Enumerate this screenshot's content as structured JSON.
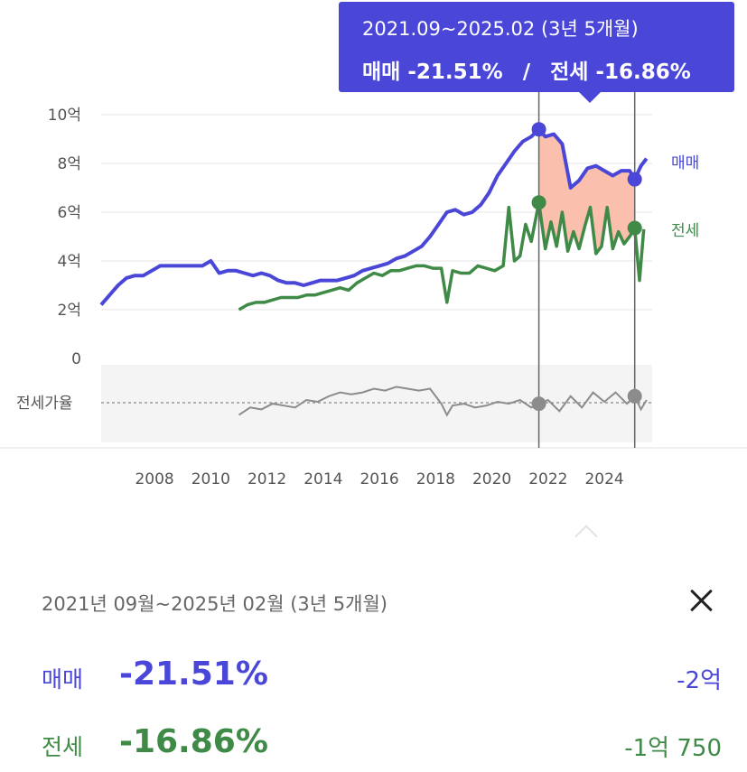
{
  "tooltip": {
    "period": "2021.09~2025.02 (3년 5개월)",
    "sale_label": "매매",
    "sale_change": "-21.51%",
    "separator": "/",
    "jeonse_label": "전세",
    "jeonse_change": "-16.86%"
  },
  "panel": {
    "period": "2021년 09월~2025년 02월 (3년 5개월)",
    "sale_label": "매매",
    "sale_change": "-21.51%",
    "sale_amount": "-2억",
    "jeonse_label": "전세",
    "jeonse_change": "-16.86%",
    "jeonse_amount": "-1억 750"
  },
  "colors": {
    "sale": "#4a47d8",
    "jeonse": "#3f8a47",
    "ratio": "#8c8c8c",
    "range_fill": "#fbbfae",
    "tooltip_bg": "#4a47d8"
  },
  "icons": {
    "close": "close-icon",
    "caret": "caret-up-icon"
  },
  "chart_data": {
    "type": "line",
    "y_tick_labels": [
      "0",
      "2억",
      "4억",
      "6억",
      "8억",
      "10억"
    ],
    "y_tick_values": [
      0,
      2,
      4,
      6,
      8,
      10
    ],
    "ylim": [
      0,
      10
    ],
    "xlim": [
      2006.1,
      2025.7
    ],
    "x_ticks": [
      "2008",
      "2010",
      "2012",
      "2014",
      "2016",
      "2018",
      "2020",
      "2022",
      "2024"
    ],
    "selection": {
      "start": 2021.67,
      "end": 2025.08,
      "start_sale": 9.4,
      "end_sale": 7.35,
      "start_jeonse": 6.4,
      "end_jeonse": 5.35,
      "start_ratio": 66,
      "end_ratio": 70
    },
    "series": [
      {
        "name": "매매",
        "x": [
          2006.1,
          2006.4,
          2006.7,
          2007.0,
          2007.3,
          2007.6,
          2007.9,
          2008.2,
          2008.5,
          2008.8,
          2009.1,
          2009.4,
          2009.7,
          2010.0,
          2010.3,
          2010.6,
          2010.9,
          2011.2,
          2011.5,
          2011.8,
          2012.1,
          2012.4,
          2012.7,
          2013.0,
          2013.3,
          2013.6,
          2013.9,
          2014.2,
          2014.5,
          2014.8,
          2015.1,
          2015.4,
          2015.7,
          2016.0,
          2016.3,
          2016.6,
          2016.9,
          2017.2,
          2017.5,
          2017.8,
          2018.1,
          2018.4,
          2018.7,
          2019.0,
          2019.3,
          2019.6,
          2019.9,
          2020.2,
          2020.5,
          2020.8,
          2021.1,
          2021.4,
          2021.67,
          2021.9,
          2022.2,
          2022.5,
          2022.8,
          2023.1,
          2023.4,
          2023.7,
          2024.0,
          2024.3,
          2024.6,
          2024.9,
          2025.08,
          2025.3,
          2025.5
        ],
        "values": [
          2.2,
          2.6,
          3.0,
          3.3,
          3.4,
          3.4,
          3.6,
          3.8,
          3.8,
          3.8,
          3.8,
          3.8,
          3.8,
          4.0,
          3.5,
          3.6,
          3.6,
          3.5,
          3.4,
          3.5,
          3.4,
          3.2,
          3.1,
          3.1,
          3.0,
          3.1,
          3.2,
          3.2,
          3.2,
          3.3,
          3.4,
          3.6,
          3.7,
          3.8,
          3.9,
          4.1,
          4.2,
          4.4,
          4.6,
          5.0,
          5.5,
          6.0,
          6.1,
          5.9,
          6.0,
          6.3,
          6.8,
          7.5,
          8.0,
          8.5,
          8.9,
          9.1,
          9.4,
          9.1,
          9.2,
          8.8,
          7.0,
          7.3,
          7.8,
          7.9,
          7.7,
          7.5,
          7.7,
          7.7,
          7.35,
          7.9,
          8.2
        ]
      },
      {
        "name": "전세",
        "x": [
          2011.0,
          2011.3,
          2011.6,
          2011.9,
          2012.2,
          2012.5,
          2012.8,
          2013.1,
          2013.4,
          2013.7,
          2014.0,
          2014.3,
          2014.6,
          2014.9,
          2015.2,
          2015.5,
          2015.8,
          2016.1,
          2016.4,
          2016.7,
          2017.0,
          2017.3,
          2017.6,
          2017.9,
          2018.2,
          2018.4,
          2018.6,
          2018.9,
          2019.2,
          2019.5,
          2019.8,
          2020.1,
          2020.4,
          2020.6,
          2020.8,
          2021.0,
          2021.2,
          2021.4,
          2021.67,
          2021.9,
          2022.1,
          2022.3,
          2022.5,
          2022.7,
          2022.9,
          2023.1,
          2023.3,
          2023.5,
          2023.7,
          2023.9,
          2024.1,
          2024.3,
          2024.5,
          2024.7,
          2024.9,
          2025.08,
          2025.25,
          2025.4
        ],
        "values": [
          2.0,
          2.2,
          2.3,
          2.3,
          2.4,
          2.5,
          2.5,
          2.5,
          2.6,
          2.6,
          2.7,
          2.8,
          2.9,
          2.8,
          3.1,
          3.3,
          3.5,
          3.4,
          3.6,
          3.6,
          3.7,
          3.8,
          3.8,
          3.7,
          3.7,
          2.3,
          3.6,
          3.5,
          3.5,
          3.8,
          3.7,
          3.6,
          3.8,
          6.2,
          4.0,
          4.2,
          5.5,
          4.8,
          6.4,
          4.5,
          5.6,
          4.6,
          6.0,
          4.4,
          5.2,
          4.5,
          5.4,
          6.2,
          4.3,
          4.6,
          6.2,
          4.5,
          5.2,
          4.7,
          5.0,
          5.35,
          3.2,
          5.3
        ]
      },
      {
        "name": "전세가율",
        "x": [
          2011.0,
          2011.4,
          2011.8,
          2012.2,
          2012.6,
          2013.0,
          2013.4,
          2013.8,
          2014.2,
          2014.6,
          2015.0,
          2015.4,
          2015.8,
          2016.2,
          2016.6,
          2017.0,
          2017.4,
          2017.8,
          2018.2,
          2018.4,
          2018.6,
          2019.0,
          2019.4,
          2019.8,
          2020.2,
          2020.6,
          2021.0,
          2021.4,
          2021.67,
          2022.0,
          2022.4,
          2022.8,
          2023.2,
          2023.6,
          2024.0,
          2024.4,
          2024.8,
          2025.08,
          2025.3,
          2025.5
        ],
        "values": [
          60,
          64,
          63,
          66,
          65,
          64,
          68,
          67,
          70,
          72,
          71,
          72,
          74,
          73,
          75,
          74,
          73,
          74,
          66,
          60,
          65,
          66,
          64,
          65,
          67,
          66,
          68,
          64,
          66,
          68,
          62,
          70,
          64,
          72,
          67,
          72,
          66,
          70,
          63,
          68
        ]
      }
    ]
  }
}
